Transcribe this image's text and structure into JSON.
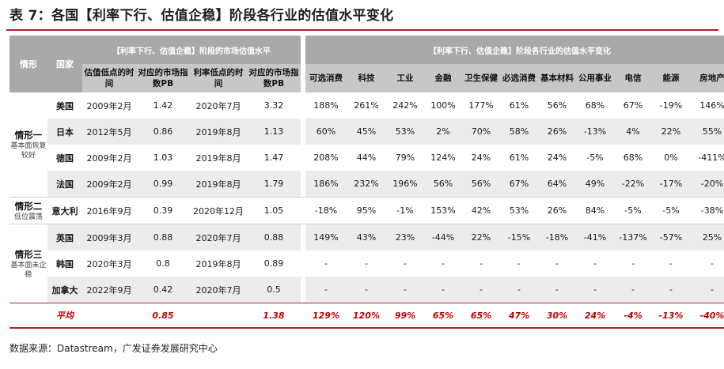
{
  "title": "表 7：各国【利率下行、估值企稳】阶段各行业的估值水平变化",
  "header": {
    "scenario": "情形",
    "country": "国家",
    "group_left": "【利率下行、估值企稳】阶段的市场估值水平",
    "group_right": "【利率下行、估值企稳】阶段各行业的估值水平变化",
    "cols_left": [
      "估值低点的时间",
      "对应的市场指数PB",
      "利率低点的时间",
      "对应的市场指数PB"
    ],
    "sectors": [
      "可选消费",
      "科技",
      "工业",
      "金融",
      "卫生保健",
      "必选消费",
      "基本材料",
      "公用事业",
      "电信",
      "能源",
      "房地产"
    ]
  },
  "scenarios": [
    {
      "title": "情形一",
      "subtitle": "基本面恢复较好"
    },
    {
      "title": "情形二",
      "subtitle": "低位震荡"
    },
    {
      "title": "情形三",
      "subtitle": "基本面未企稳"
    }
  ],
  "rows": [
    {
      "country": "美国",
      "val_low": "2009年2月",
      "pb1": "1.42",
      "rate_low": "2020年7月",
      "pb2": "3.32",
      "vals": [
        "188%",
        "261%",
        "242%",
        "100%",
        "177%",
        "61%",
        "56%",
        "68%",
        "67%",
        "-19%",
        "146%"
      ]
    },
    {
      "country": "日本",
      "val_low": "2012年5月",
      "pb1": "0.86",
      "rate_low": "2019年8月",
      "pb2": "1.13",
      "vals": [
        "60%",
        "45%",
        "53%",
        "2%",
        "70%",
        "58%",
        "26%",
        "-13%",
        "4%",
        "22%",
        "55%"
      ]
    },
    {
      "country": "德国",
      "val_low": "2009年2月",
      "pb1": "1.03",
      "rate_low": "2019年8月",
      "pb2": "1.47",
      "vals": [
        "208%",
        "44%",
        "79%",
        "124%",
        "24%",
        "61%",
        "24%",
        "-5%",
        "68%",
        "0%",
        "-411%"
      ]
    },
    {
      "country": "法国",
      "val_low": "2009年2月",
      "pb1": "0.99",
      "rate_low": "2019年8月",
      "pb2": "1.79",
      "vals": [
        "186%",
        "232%",
        "196%",
        "56%",
        "56%",
        "67%",
        "64%",
        "49%",
        "-22%",
        "-17%",
        "-20%"
      ]
    },
    {
      "country": "意大利",
      "val_low": "2016年9月",
      "pb1": "0.39",
      "rate_low": "2020年12月",
      "pb2": "1.05",
      "vals": [
        "-18%",
        "95%",
        "-1%",
        "153%",
        "42%",
        "53%",
        "26%",
        "84%",
        "-5%",
        "-5%",
        "-38%"
      ]
    },
    {
      "country": "英国",
      "val_low": "2009年3月",
      "pb1": "0.88",
      "rate_low": "2020年7月",
      "pb2": "0.88",
      "vals": [
        "149%",
        "43%",
        "23%",
        "-44%",
        "22%",
        "-15%",
        "-18%",
        "-41%",
        "-137%",
        "-57%",
        "25%"
      ]
    },
    {
      "country": "韩国",
      "val_low": "2020年3月",
      "pb1": "0.8",
      "rate_low": "2019年8月",
      "pb2": "0.89",
      "vals": [
        "-",
        "-",
        "-",
        "-",
        "-",
        "-",
        "-",
        "-",
        "-",
        "-",
        "-"
      ]
    },
    {
      "country": "加拿大",
      "val_low": "2022年9月",
      "pb1": "0.42",
      "rate_low": "2020年7月",
      "pb2": "0.5",
      "vals": [
        "-",
        "-",
        "-",
        "-",
        "-",
        "-",
        "-",
        "-",
        "-",
        "-",
        "-"
      ]
    }
  ],
  "average": {
    "label": "平均",
    "pb1": "0.85",
    "pb2": "1.38",
    "vals": [
      "129%",
      "120%",
      "99%",
      "65%",
      "65%",
      "47%",
      "30%",
      "24%",
      "-4%",
      "-13%",
      "-40%"
    ]
  },
  "source": "数据来源：Datastream，广发证券发展研究中心",
  "colors": {
    "accent_red": "#b21f24",
    "header_dark": "#a9a9a9",
    "header_light": "#c7c7c7",
    "avg_red": "#c00000"
  }
}
